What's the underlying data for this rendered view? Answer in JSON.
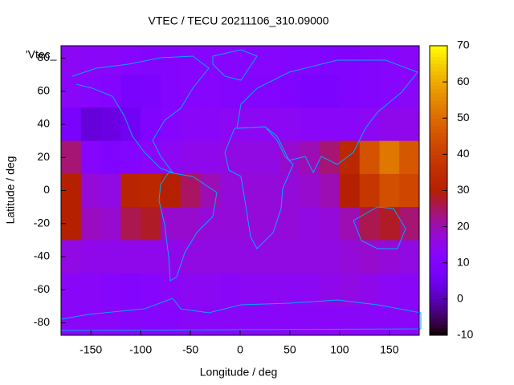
{
  "chart_data": {
    "type": "heatmap",
    "title": "VTEC / TECU 20211106_310.09000",
    "xlabel": "Longitude / deg",
    "ylabel": "Latitude / deg",
    "key_label": "'Vtec_",
    "xbins": [
      -180,
      -160,
      -140,
      -120,
      -100,
      -80,
      -60,
      -40,
      -20,
      0,
      20,
      40,
      60,
      80,
      100,
      120,
      140,
      160,
      180
    ],
    "ybins": [
      90,
      70,
      50,
      30,
      10,
      -10,
      -30,
      -50,
      -70,
      -90
    ],
    "z": [
      [
        14,
        13,
        13,
        12,
        11,
        11,
        12,
        12,
        12,
        12,
        12,
        11,
        11,
        10,
        10,
        11,
        12,
        13
      ],
      [
        13,
        12,
        11,
        8,
        9,
        11,
        12,
        12,
        11,
        11,
        11,
        10,
        9,
        9,
        10,
        11,
        12,
        13
      ],
      [
        8,
        3,
        4,
        6,
        10,
        12,
        13,
        13,
        14,
        14,
        14,
        14,
        13,
        13,
        13,
        14,
        15,
        15
      ],
      [
        24,
        12,
        10,
        11,
        13,
        14,
        15,
        15,
        16,
        16,
        16,
        18,
        20,
        24,
        33,
        45,
        52,
        46
      ],
      [
        30,
        17,
        16,
        32,
        33,
        30,
        25,
        20,
        17,
        17,
        17,
        17,
        18,
        20,
        30,
        38,
        44,
        42
      ],
      [
        30,
        19,
        18,
        26,
        28,
        18,
        18,
        17,
        17,
        17,
        17,
        17,
        16,
        17,
        20,
        26,
        28,
        24
      ],
      [
        16,
        15,
        15,
        15,
        15,
        15,
        16,
        16,
        16,
        16,
        16,
        16,
        16,
        16,
        17,
        18,
        17,
        16
      ],
      [
        13,
        13,
        12,
        11,
        12,
        13,
        14,
        14,
        13,
        14,
        14,
        14,
        14,
        15,
        16,
        15,
        14,
        13
      ],
      [
        13,
        13,
        13,
        12,
        12,
        12,
        13,
        13,
        13,
        13,
        13,
        13,
        13,
        13,
        13,
        13,
        13,
        13
      ]
    ],
    "xlim": [
      -180,
      180
    ],
    "ylim": [
      -87.5,
      87.5
    ],
    "xticks": [
      -150,
      -100,
      -50,
      0,
      50,
      100,
      150
    ],
    "yticks": [
      -80,
      -60,
      -40,
      -20,
      0,
      20,
      40,
      60,
      80
    ],
    "cblim": [
      -10,
      70
    ],
    "cbticks": [
      -10,
      0,
      10,
      20,
      30,
      40,
      50,
      60,
      70
    ],
    "palette": "rgbformulae 7,5,15",
    "coast_color": "#00a8ff"
  }
}
